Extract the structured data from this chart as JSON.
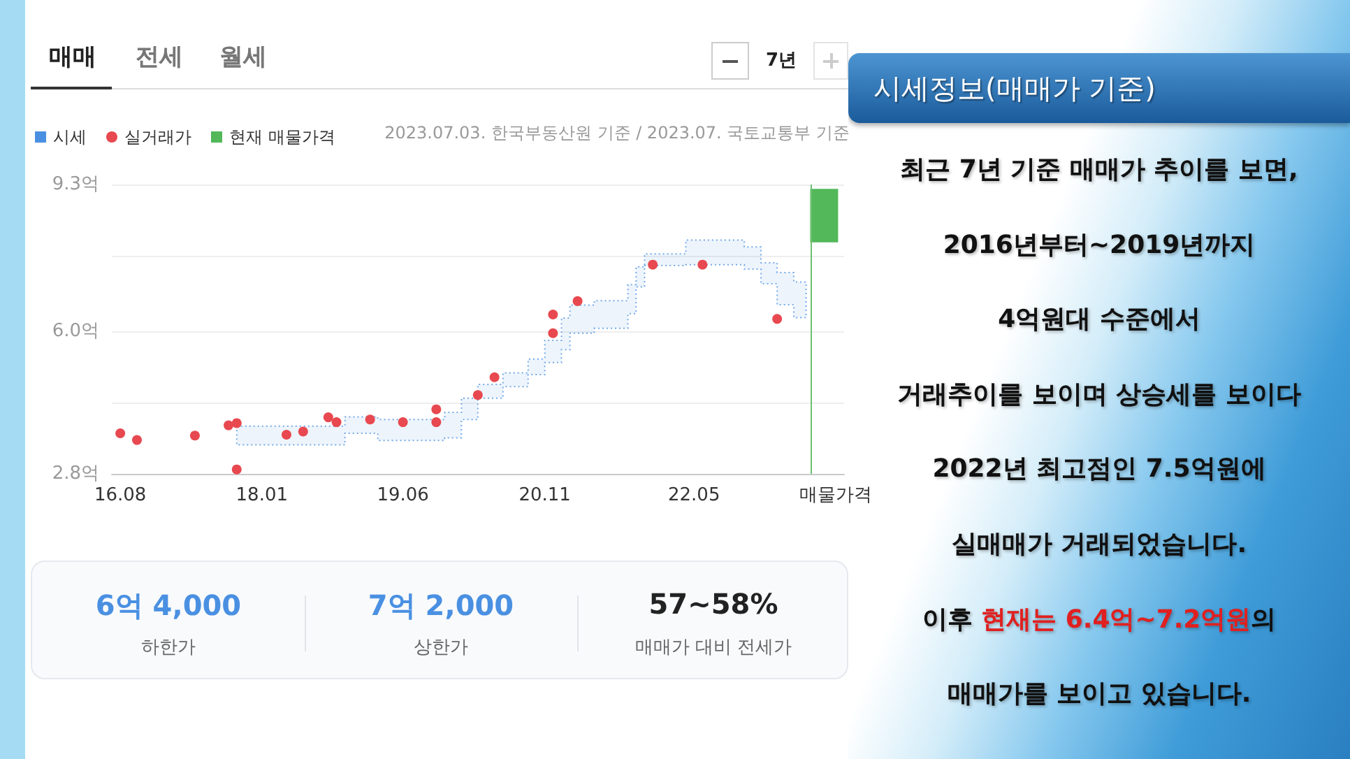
{
  "chart_data": [
    {
      "type": "step",
      "series": [
        {
          "name": "시세",
          "color": "#4a90e2",
          "x": [
            "2017-10",
            "2018-11",
            "2019-03",
            "2019-11",
            "2020-01",
            "2020-03",
            "2020-06",
            "2020-09",
            "2020-11",
            "2021-01",
            "2021-02",
            "2021-05",
            "2021-09",
            "2021-10",
            "2021-11",
            "2022-04",
            "2022-11",
            "2023-01",
            "2023-03",
            "2023-05",
            "2023-06-15"
          ],
          "values": [
            null,
            null,
            null,
            null,
            null,
            null,
            null,
            null,
            null,
            null,
            null,
            null,
            null,
            null,
            null,
            null,
            null,
            null,
            null,
            null,
            null
          ],
          "lower": [
            3.45,
            3.71,
            3.55,
            3.61,
            4.02,
            4.5,
            4.76,
            5.03,
            5.3,
            5.59,
            5.96,
            6.07,
            6.4,
            7.0,
            7.48,
            7.5,
            7.4,
            7.07,
            6.6,
            6.31,
            6.31
          ],
          "upper": [
            3.87,
            4.08,
            4.02,
            4.18,
            4.5,
            4.81,
            5.07,
            5.38,
            5.8,
            6.3,
            6.59,
            6.69,
            7.05,
            7.45,
            7.74,
            8.05,
            7.9,
            7.54,
            7.32,
            7.11,
            7.11
          ]
        },
        {
          "name": "실거래가",
          "type": "scatter",
          "marker": "circle",
          "color": "#e8484f",
          "x": [
            "2016-08",
            "2016-10",
            "2017-05",
            "2017-09",
            "2017-10",
            "2017-10",
            "2018-04",
            "2018-06",
            "2018-09",
            "2018-10",
            "2019-02",
            "2019-06",
            "2019-10",
            "2019-10",
            "2020-03",
            "2020-05",
            "2020-12",
            "2020-12",
            "2021-03",
            "2021-12",
            "2022-06",
            "2023-03"
          ],
          "values": [
            3.71,
            3.56,
            3.66,
            3.89,
            3.94,
            2.9,
            3.68,
            3.75,
            4.07,
            3.96,
            4.02,
            3.96,
            4.25,
            3.96,
            4.57,
            4.97,
            5.96,
            6.38,
            6.68,
            7.5,
            7.5,
            6.28
          ]
        },
        {
          "name": "현재 매물가격",
          "type": "bar",
          "color": "#52b85a",
          "x": [
            "2023-08-20"
          ],
          "values": [
            1.2
          ],
          "base": [
            8.0
          ]
        }
      ],
      "xlim": [
        "2016-07",
        "2023-11"
      ],
      "xticks": [
        {
          "value": "2016-08",
          "label": "16.08"
        },
        {
          "value": "2018-01",
          "label": "18.01"
        },
        {
          "value": "2019-06",
          "label": "19.06"
        },
        {
          "value": "2020-11",
          "label": "20.11"
        },
        {
          "value": "2022-05",
          "label": "22.05"
        },
        {
          "value": "2023-10",
          "label": "매물가격"
        }
      ],
      "ylim": [
        2.8,
        9.3
      ],
      "yticks": [
        {
          "value": 2.8,
          "label": "2.8억"
        },
        {
          "value": 4.4,
          "label": null
        },
        {
          "value": 6.0,
          "label": "6.0억"
        },
        {
          "value": 7.7,
          "label": null
        },
        {
          "value": 9.3,
          "label": "9.3억"
        }
      ],
      "grid": "y",
      "legend": "top left",
      "line_style": "dotted",
      "ref_lines": [
        {
          "axis": "x",
          "value": "2023-07",
          "color": "#6cc070"
        }
      ],
      "annotations": [
        "매매",
        "전세",
        "월세",
        "7년",
        "2023.07.03. 한국부동산원 기준 / 2023.07. 국토교통부 기준"
      ]
    },
    {
      "type": "other",
      "annotations": [
        "6억 4,000",
        "하한가",
        "7억 2,000",
        "상한가",
        "57~58%",
        "매매가 대비 전세가"
      ]
    },
    {
      "type": "other",
      "title": "시세정보(매매가 기준)",
      "annotations": [
        "최근 7년 기준 매매가 추이를 보면,",
        "2016년부터~2019년까지",
        "4억원대 수준에서",
        "거래추이를 보이며 상승세를 보이다",
        "2022년 최고점인 7.5억원에",
        "실매매가 거래되었습니다.",
        "이후 ",
        "현재는 6.4억~7.2억원",
        "의",
        "매매가를 보이고 있습니다."
      ]
    }
  ]
}
